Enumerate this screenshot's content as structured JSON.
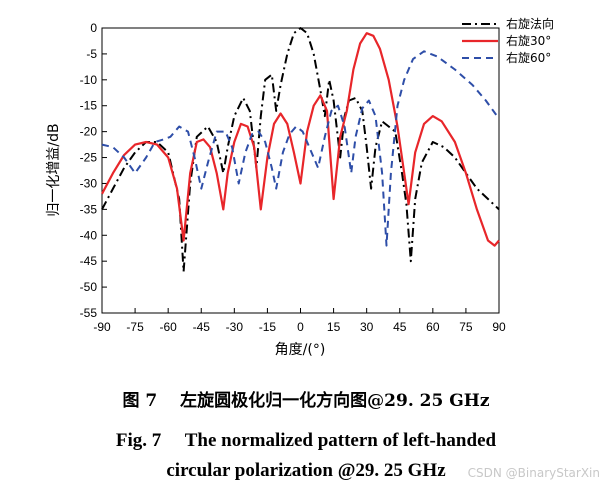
{
  "chart_data": {
    "type": "line",
    "xlabel": "角度/(°)",
    "ylabel": "归一化增益/dB",
    "xlim": [
      -90,
      90
    ],
    "ylim": [
      -55,
      0
    ],
    "x_ticks": [
      "-90",
      "-75",
      "-60",
      "-45",
      "-30",
      "-15",
      "0",
      "15",
      "30",
      "45",
      "60",
      "75",
      "90"
    ],
    "y_ticks": [
      "0",
      "-5",
      "-10",
      "-15",
      "-20",
      "-25",
      "-30",
      "-35",
      "-40",
      "-45",
      "-50",
      "-55"
    ],
    "legend_position": "top-right",
    "series": [
      {
        "name": "右旋法向",
        "color": "#000000",
        "style": "dashdot",
        "points": [
          [
            -90,
            -35
          ],
          [
            -85,
            -31
          ],
          [
            -80,
            -27
          ],
          [
            -75,
            -24
          ],
          [
            -70,
            -22
          ],
          [
            -65,
            -22
          ],
          [
            -60,
            -24
          ],
          [
            -55,
            -33
          ],
          [
            -53,
            -47
          ],
          [
            -50,
            -30
          ],
          [
            -47,
            -21
          ],
          [
            -42,
            -19
          ],
          [
            -38,
            -22
          ],
          [
            -35,
            -28
          ],
          [
            -33,
            -23
          ],
          [
            -30,
            -17
          ],
          [
            -26,
            -13.5
          ],
          [
            -23,
            -16
          ],
          [
            -20,
            -27
          ],
          [
            -18,
            -17
          ],
          [
            -16,
            -10
          ],
          [
            -13,
            -9
          ],
          [
            -11,
            -16
          ],
          [
            -9,
            -11
          ],
          [
            -6,
            -5
          ],
          [
            -3,
            -1
          ],
          [
            0,
            0
          ],
          [
            3,
            -1
          ],
          [
            6,
            -5
          ],
          [
            9,
            -12
          ],
          [
            11,
            -17
          ],
          [
            13,
            -10
          ],
          [
            15,
            -14
          ],
          [
            18,
            -25
          ],
          [
            20,
            -17
          ],
          [
            22,
            -14
          ],
          [
            25,
            -13.5
          ],
          [
            28,
            -16
          ],
          [
            30,
            -23
          ],
          [
            32,
            -31
          ],
          [
            34,
            -23
          ],
          [
            37,
            -18
          ],
          [
            40,
            -19
          ],
          [
            43,
            -20
          ],
          [
            46,
            -28
          ],
          [
            48,
            -34
          ],
          [
            50,
            -45
          ],
          [
            52,
            -33
          ],
          [
            55,
            -26
          ],
          [
            60,
            -22
          ],
          [
            65,
            -23
          ],
          [
            70,
            -25
          ],
          [
            75,
            -28
          ],
          [
            80,
            -31
          ],
          [
            85,
            -33
          ],
          [
            90,
            -35
          ]
        ]
      },
      {
        "name": "右旋30°",
        "color": "#e8262a",
        "style": "solid",
        "points": [
          [
            -90,
            -32
          ],
          [
            -85,
            -28
          ],
          [
            -80,
            -24.5
          ],
          [
            -75,
            -22.5
          ],
          [
            -70,
            -22
          ],
          [
            -65,
            -22.5
          ],
          [
            -60,
            -25
          ],
          [
            -56,
            -31
          ],
          [
            -53,
            -41
          ],
          [
            -50,
            -28
          ],
          [
            -47,
            -22
          ],
          [
            -44,
            -21.5
          ],
          [
            -41,
            -23
          ],
          [
            -38,
            -28
          ],
          [
            -35,
            -35
          ],
          [
            -33,
            -28
          ],
          [
            -30,
            -22
          ],
          [
            -27,
            -18.5
          ],
          [
            -24,
            -19
          ],
          [
            -21,
            -23
          ],
          [
            -18,
            -35
          ],
          [
            -15,
            -25
          ],
          [
            -12,
            -18.5
          ],
          [
            -9,
            -16.5
          ],
          [
            -6,
            -18.5
          ],
          [
            -3,
            -24
          ],
          [
            0,
            -30
          ],
          [
            3,
            -20
          ],
          [
            6,
            -15
          ],
          [
            9,
            -13
          ],
          [
            12,
            -16
          ],
          [
            15,
            -33
          ],
          [
            18,
            -21
          ],
          [
            21,
            -16
          ],
          [
            24,
            -8
          ],
          [
            27,
            -3
          ],
          [
            30,
            -1
          ],
          [
            33,
            -1.5
          ],
          [
            36,
            -4
          ],
          [
            40,
            -10
          ],
          [
            44,
            -19
          ],
          [
            47,
            -28
          ],
          [
            49,
            -34
          ],
          [
            52,
            -24
          ],
          [
            56,
            -18.5
          ],
          [
            60,
            -17
          ],
          [
            64,
            -18
          ],
          [
            70,
            -22
          ],
          [
            75,
            -28
          ],
          [
            80,
            -35
          ],
          [
            85,
            -41
          ],
          [
            88,
            -42
          ],
          [
            90,
            -41
          ]
        ]
      },
      {
        "name": "右旋60°",
        "color": "#2e4ea8",
        "style": "dashed",
        "points": [
          [
            -90,
            -22.5
          ],
          [
            -85,
            -23
          ],
          [
            -80,
            -25
          ],
          [
            -75,
            -28
          ],
          [
            -70,
            -25
          ],
          [
            -66,
            -22
          ],
          [
            -62,
            -21.5
          ],
          [
            -59,
            -21
          ],
          [
            -55,
            -19
          ],
          [
            -51,
            -20
          ],
          [
            -48,
            -25
          ],
          [
            -45,
            -31
          ],
          [
            -42,
            -26
          ],
          [
            -38,
            -20
          ],
          [
            -34,
            -20
          ],
          [
            -31,
            -23
          ],
          [
            -28,
            -30
          ],
          [
            -25,
            -24
          ],
          [
            -22,
            -20.5
          ],
          [
            -19,
            -20
          ],
          [
            -16,
            -22
          ],
          [
            -13,
            -27
          ],
          [
            -11,
            -31
          ],
          [
            -8,
            -24
          ],
          [
            -5,
            -20.5
          ],
          [
            -2,
            -19
          ],
          [
            1,
            -20
          ],
          [
            5,
            -24
          ],
          [
            8,
            -27
          ],
          [
            11,
            -21
          ],
          [
            14,
            -16
          ],
          [
            17,
            -15
          ],
          [
            20,
            -19
          ],
          [
            23,
            -28
          ],
          [
            25,
            -21
          ],
          [
            28,
            -15.5
          ],
          [
            31,
            -14
          ],
          [
            34,
            -17
          ],
          [
            37,
            -28
          ],
          [
            39,
            -42
          ],
          [
            41,
            -28
          ],
          [
            44,
            -15
          ],
          [
            47,
            -10
          ],
          [
            51,
            -6
          ],
          [
            56,
            -4.5
          ],
          [
            62,
            -5.5
          ],
          [
            70,
            -8
          ],
          [
            78,
            -11
          ],
          [
            84,
            -14
          ],
          [
            90,
            -17.5
          ]
        ]
      }
    ]
  },
  "caption": {
    "cn": "图 7　 左旋圆极化归一化方向图@29. 25 GHz",
    "en_line1": "Fig. 7　 The normalized pattern of left-handed",
    "en_line2": "circular polarization @29. 25 GHz"
  },
  "watermark": "CSDN @BinaryStarXin"
}
